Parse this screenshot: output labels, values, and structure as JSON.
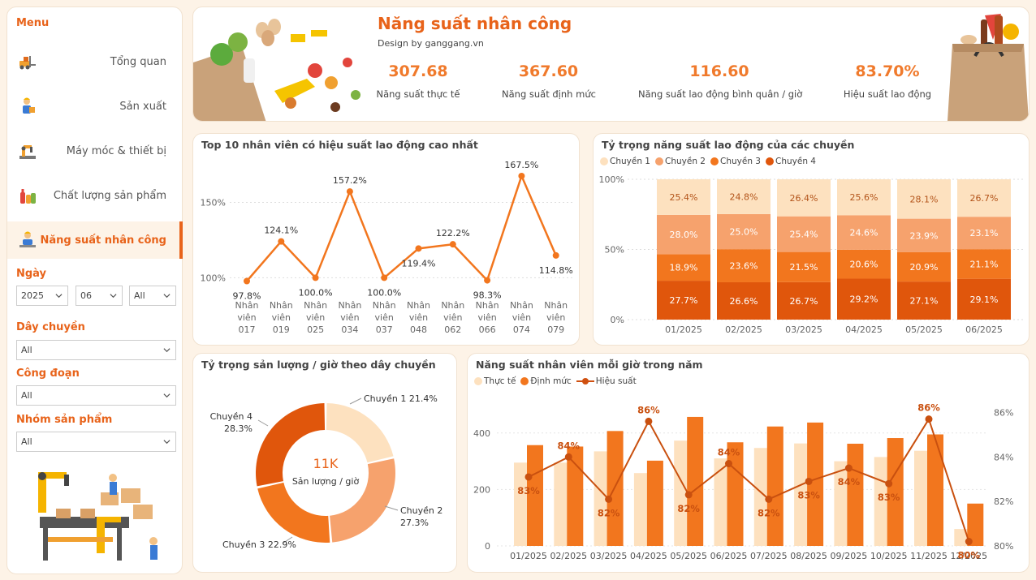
{
  "menu": {
    "title": "Menu",
    "items": [
      {
        "label": "Tổng quan",
        "icon": "forklift-icon"
      },
      {
        "label": "Sản xuất",
        "icon": "worker-icon"
      },
      {
        "label": "Máy móc & thiết bị",
        "icon": "robot-arm-icon"
      },
      {
        "label": "Chất lượng sản phẩm",
        "icon": "bottles-icon"
      },
      {
        "label": "Năng suất nhân công",
        "icon": "worker-laptop-icon",
        "active": true
      }
    ]
  },
  "filters": {
    "date_label": "Ngày",
    "year": "2025",
    "month": "06",
    "day": "All",
    "line_label": "Dây chuyền",
    "line_value": "All",
    "stage_label": "Công đoạn",
    "stage_value": "All",
    "group_label": "Nhóm sản phẩm",
    "group_value": "All"
  },
  "header": {
    "title": "Năng suất nhân công",
    "subtitle": "Design by ganggang.vn",
    "kpis": [
      {
        "value": "307.68",
        "label": "Năng suất thực tế"
      },
      {
        "value": "367.60",
        "label": "Năng suất định mức"
      },
      {
        "value": "116.60",
        "label": "Năng suất lao động bình quân / giờ"
      },
      {
        "value": "83.70%",
        "label": "Hiệu suất lao động"
      }
    ]
  },
  "colors": {
    "accent": "#e8631a",
    "c1": "#fde1bf",
    "c2": "#f6a26d",
    "c3": "#f2761e",
    "c4": "#e0560c"
  },
  "chart_data": [
    {
      "type": "line",
      "title": "Top 10 nhân viên có hiệu suất lao động cao nhất",
      "categories": [
        "Nhân viên 017",
        "Nhân viên 019",
        "Nhân viên 025",
        "Nhân viên 034",
        "Nhân viên 037",
        "Nhân viên 048",
        "Nhân viên 062",
        "Nhân viên 066",
        "Nhân viên 074",
        "Nhân viên 079"
      ],
      "category_lines": [
        [
          "Nhân",
          "viên",
          "017"
        ],
        [
          "Nhân",
          "viên",
          "019"
        ],
        [
          "Nhân",
          "viên",
          "025"
        ],
        [
          "Nhân",
          "viên",
          "034"
        ],
        [
          "Nhân",
          "viên",
          "037"
        ],
        [
          "Nhân",
          "viên",
          "048"
        ],
        [
          "Nhân",
          "viên",
          "062"
        ],
        [
          "Nhân",
          "viên",
          "066"
        ],
        [
          "Nhân",
          "viên",
          "074"
        ],
        [
          "Nhân",
          "viên",
          "079"
        ]
      ],
      "values": [
        97.8,
        124.1,
        100.0,
        157.2,
        100.0,
        119.4,
        122.2,
        98.3,
        167.5,
        114.8
      ],
      "labels": [
        "97.8%",
        "124.1%",
        "100.0%",
        "157.2%",
        "100.0%",
        "119.4%",
        "122.2%",
        "98.3%",
        "167.5%",
        "114.8%"
      ],
      "yticks": [
        "100%",
        "150%"
      ],
      "ytick_values": [
        100,
        150
      ],
      "ylim": [
        90,
        175
      ]
    },
    {
      "type": "bar",
      "stacked": "100%",
      "title": "Tỷ trọng năng suất lao động của các chuyền",
      "categories": [
        "01/2025",
        "02/2025",
        "03/2025",
        "04/2025",
        "05/2025",
        "06/2025"
      ],
      "series": [
        {
          "name": "Chuyền 1",
          "values": [
            25.4,
            24.8,
            26.4,
            25.6,
            28.1,
            26.7
          ],
          "labels": [
            "25.4%",
            "24.8%",
            "26.4%",
            "25.6%",
            "28.1%",
            "26.7%"
          ]
        },
        {
          "name": "Chuyền 2",
          "values": [
            28.0,
            25.0,
            25.4,
            24.6,
            23.9,
            23.1
          ],
          "labels": [
            "28.0%",
            "25.0%",
            "25.4%",
            "24.6%",
            "23.9%",
            "23.1%"
          ]
        },
        {
          "name": "Chuyền 3",
          "values": [
            18.9,
            23.6,
            21.5,
            20.6,
            20.9,
            21.1
          ],
          "labels": [
            "18.9%",
            "23.6%",
            "21.5%",
            "20.6%",
            "20.9%",
            "21.1%"
          ]
        },
        {
          "name": "Chuyền 4",
          "values": [
            27.7,
            26.6,
            26.7,
            29.2,
            27.1,
            29.1
          ],
          "labels": [
            "27.7%",
            "26.6%",
            "26.7%",
            "29.2%",
            "27.1%",
            "29.1%"
          ]
        }
      ],
      "yticks": [
        "0%",
        "50%",
        "100%"
      ]
    },
    {
      "type": "pie",
      "donut": true,
      "title": "Tỷ trọng sản lượng / giờ theo dây chuyền",
      "center_value": "11K",
      "center_label": "Sản lượng / giờ",
      "slices": [
        {
          "name": "Chuyền 1",
          "value": 21.4,
          "label": "21.4%"
        },
        {
          "name": "Chuyền 2",
          "value": 27.3,
          "label": "27.3%"
        },
        {
          "name": "Chuyền 3",
          "value": 22.9,
          "label": "22.9%"
        },
        {
          "name": "Chuyền 4",
          "value": 28.3,
          "label": "28.3%"
        }
      ]
    },
    {
      "type": "bar",
      "combo": "bar+line",
      "title": "Năng suất nhân viên mỗi giờ trong năm",
      "categories": [
        "01/2025",
        "02/2025",
        "03/2025",
        "04/2025",
        "05/2025",
        "06/2025",
        "07/2025",
        "08/2025",
        "09/2025",
        "10/2025",
        "11/2025",
        "12/2025"
      ],
      "series": [
        {
          "name": "Thực tế",
          "values": [
            295,
            295,
            335,
            258,
            373,
            310,
            347,
            363,
            300,
            315,
            337,
            60
          ]
        },
        {
          "name": "Định mức",
          "values": [
            357,
            352,
            407,
            302,
            457,
            367,
            423,
            437,
            362,
            382,
            395,
            150
          ]
        },
        {
          "name": "Hiệu suất",
          "axis": "right",
          "values": [
            83.1,
            84.0,
            82.1,
            85.6,
            82.3,
            83.7,
            82.1,
            82.9,
            83.5,
            82.8,
            85.7,
            80.2
          ],
          "labels": [
            "83%",
            "84%",
            "82%",
            "86%",
            "82%",
            "84%",
            "82%",
            "83%",
            "84%",
            "83%",
            "86%",
            "80%"
          ]
        }
      ],
      "yticks_left": [
        "0",
        "200",
        "400"
      ],
      "ylim_left": [
        0,
        520
      ],
      "yticks_right": [
        "80%",
        "82%",
        "84%",
        "86%"
      ],
      "ylim_right": [
        80,
        86.6
      ]
    }
  ]
}
